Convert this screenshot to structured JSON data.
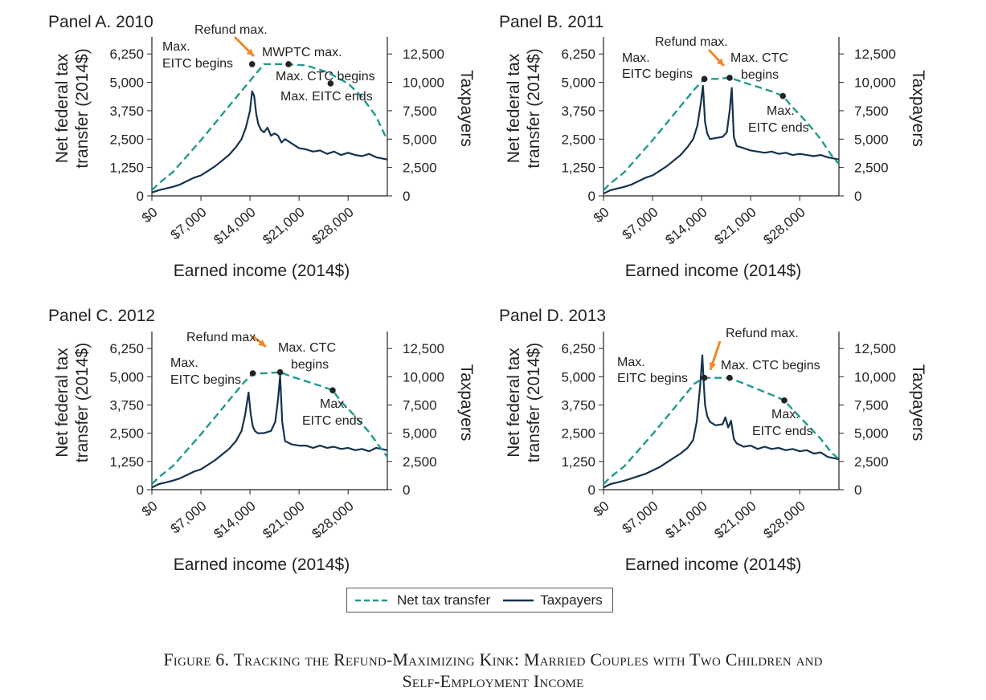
{
  "figure": {
    "caption_line1": "Figure 6. Tracking the Refund-Maximizing Kink: Married Couples with Two Children and",
    "caption_line2": "Self-Employment Income"
  },
  "legend": {
    "net_transfer_label": "Net tax transfer",
    "taxpayers_label": "Taxpayers"
  },
  "colors": {
    "net_transfer": "#1f9a8e",
    "taxpayers": "#15324e",
    "arrow": "#f0872a"
  },
  "chart_data": [
    {
      "type": "line",
      "title": "Panel A. 2010",
      "xlabel": "Earned income (2014$)",
      "ylabel_left": "Net federal tax transfer (2014$)",
      "ylabel_right": "Taxpayers",
      "x_ticks": [
        "$0",
        "$7,000",
        "$14,000",
        "$21,000",
        "$28,000"
      ],
      "x_tick_values": [
        0,
        7000,
        14000,
        21000,
        28000
      ],
      "y_left_ticks": [
        "0",
        "1,250",
        "2,500",
        "3,750",
        "5,000",
        "6,250"
      ],
      "y_right_ticks": [
        "0",
        "2,500",
        "5,000",
        "7,500",
        "10,000",
        "12,500"
      ],
      "xlim": [
        0,
        33600
      ],
      "ylim_left": [
        0,
        7000
      ],
      "ylim_right": [
        0,
        14000
      ],
      "net_transfer": {
        "x": [
          0,
          1000,
          3000,
          5000,
          7000,
          9000,
          11000,
          13000,
          14500,
          16000,
          19000,
          22000,
          25000,
          28000,
          30000,
          32000,
          33600
        ],
        "y": [
          250,
          550,
          1050,
          1750,
          2450,
          3200,
          3950,
          4700,
          5250,
          5800,
          5800,
          5750,
          5450,
          4950,
          4350,
          3500,
          2450
        ]
      },
      "taxpayers": {
        "x": [
          0,
          1000,
          2000,
          3000,
          4000,
          5000,
          6000,
          7000,
          8000,
          9000,
          10000,
          11000,
          12000,
          12800,
          13400,
          14000,
          14300,
          14600,
          14900,
          15200,
          15600,
          16000,
          16500,
          17000,
          17500,
          18000,
          18500,
          19000,
          20000,
          21000,
          22000,
          23000,
          24000,
          25000,
          26000,
          27000,
          28000,
          29000,
          30000,
          31000,
          32000,
          33600
        ],
        "y": [
          300,
          500,
          650,
          800,
          1000,
          1300,
          1600,
          1800,
          2200,
          2600,
          3100,
          3600,
          4300,
          5000,
          6000,
          7500,
          9200,
          8800,
          7200,
          6300,
          5800,
          5600,
          6000,
          5300,
          5500,
          5300,
          4700,
          5000,
          4600,
          4200,
          4100,
          3900,
          4000,
          3700,
          3900,
          3600,
          3800,
          3600,
          3500,
          3700,
          3400,
          3200
        ]
      },
      "annotations": [
        {
          "label": "Refund max.",
          "x": 14600,
          "y": 5800,
          "arrow": true
        },
        {
          "label": "Max.",
          "x": 14300,
          "y": 5800
        },
        {
          "label": "EITC begins",
          "x": 14300,
          "y": 5800
        },
        {
          "label": "MWPTC max.",
          "x": 19500,
          "y": 5800
        },
        {
          "label": "Max. CTC begins",
          "x": 25500,
          "y": 4950
        },
        {
          "label": "Max. EITC ends",
          "x": 25500,
          "y": 4950
        }
      ]
    },
    {
      "type": "line",
      "title": "Panel B. 2011",
      "xlabel": "Earned income (2014$)",
      "ylabel_left": "Net federal tax transfer (2014$)",
      "ylabel_right": "Taxpayers",
      "x_ticks": [
        "$0",
        "$7,000",
        "$14,000",
        "$21,000",
        "$28,000"
      ],
      "x_tick_values": [
        0,
        7000,
        14000,
        21000,
        28000
      ],
      "y_left_ticks": [
        "0",
        "1,250",
        "2,500",
        "3,750",
        "5,000",
        "6,250"
      ],
      "y_right_ticks": [
        "0",
        "2,500",
        "5,000",
        "7,500",
        "10,000",
        "12,500"
      ],
      "xlim": [
        0,
        33600
      ],
      "ylim_left": [
        0,
        7000
      ],
      "ylim_right": [
        0,
        14000
      ],
      "net_transfer": {
        "x": [
          0,
          1000,
          3000,
          5000,
          7000,
          9000,
          11000,
          13000,
          14400,
          16000,
          18000,
          20000,
          22000,
          24000,
          25600,
          27000,
          29000,
          31000,
          32500,
          33600
        ],
        "y": [
          250,
          550,
          1050,
          1750,
          2450,
          3200,
          3950,
          4700,
          5150,
          5150,
          5200,
          5000,
          4800,
          4600,
          4400,
          3900,
          3250,
          2500,
          1800,
          1400
        ]
      },
      "taxpayers": {
        "x": [
          0,
          1000,
          2000,
          3000,
          4000,
          5000,
          6000,
          7000,
          8000,
          9000,
          10000,
          11000,
          12000,
          12800,
          13400,
          13900,
          14200,
          14500,
          14800,
          15200,
          16000,
          17000,
          17600,
          18000,
          18300,
          18600,
          19000,
          20000,
          21000,
          22000,
          23000,
          24000,
          25000,
          26000,
          27000,
          28000,
          29000,
          30000,
          31000,
          32000,
          33600
        ],
        "y": [
          200,
          500,
          650,
          800,
          1000,
          1300,
          1600,
          1800,
          2200,
          2600,
          3100,
          3600,
          4300,
          5000,
          6200,
          8200,
          9700,
          6500,
          5500,
          5000,
          5100,
          5200,
          5600,
          7500,
          9500,
          5200,
          4400,
          4200,
          4000,
          3900,
          3800,
          3900,
          3700,
          3800,
          3600,
          3700,
          3600,
          3500,
          3600,
          3400,
          3200
        ]
      },
      "annotations": [
        {
          "label": "Refund max.",
          "x": 16000,
          "y": 5150,
          "arrow": true
        },
        {
          "label": "Max.",
          "x": 14400,
          "y": 5150
        },
        {
          "label": "EITC begins",
          "x": 14400,
          "y": 5150
        },
        {
          "label": "Max. CTC",
          "x": 18000,
          "y": 5200
        },
        {
          "label": "begins",
          "x": 18000,
          "y": 5200
        },
        {
          "label": "Max.",
          "x": 25600,
          "y": 4400
        },
        {
          "label": "EITC ends",
          "x": 25600,
          "y": 4400
        }
      ]
    },
    {
      "type": "line",
      "title": "Panel C. 2012",
      "xlabel": "Earned income (2014$)",
      "ylabel_left": "Net federal tax transfer (2014$)",
      "ylabel_right": "Taxpayers",
      "x_ticks": [
        "$0",
        "$7,000",
        "$14,000",
        "$21,000",
        "$28,000"
      ],
      "x_tick_values": [
        0,
        7000,
        14000,
        21000,
        28000
      ],
      "y_left_ticks": [
        "0",
        "1,250",
        "2,500",
        "3,750",
        "5,000",
        "6,250"
      ],
      "y_right_ticks": [
        "0",
        "2,500",
        "5,000",
        "7,500",
        "10,000",
        "12,500"
      ],
      "xlim": [
        0,
        33600
      ],
      "ylim_left": [
        0,
        7000
      ],
      "ylim_right": [
        0,
        14000
      ],
      "net_transfer": {
        "x": [
          0,
          1000,
          3000,
          5000,
          7000,
          9000,
          11000,
          13000,
          14400,
          16000,
          18300,
          20000,
          22000,
          24000,
          25800,
          27000,
          29000,
          31000,
          32500,
          33600
        ],
        "y": [
          250,
          550,
          1050,
          1750,
          2450,
          3200,
          3950,
          4700,
          5150,
          5150,
          5200,
          5000,
          4800,
          4600,
          4400,
          3900,
          3250,
          2550,
          1900,
          1450
        ]
      },
      "taxpayers": {
        "x": [
          0,
          1000,
          2000,
          3000,
          4000,
          5000,
          6000,
          7000,
          8000,
          9000,
          10000,
          11000,
          12000,
          12800,
          13300,
          13800,
          14100,
          14400,
          14700,
          15100,
          16000,
          17000,
          17600,
          18000,
          18300,
          18600,
          19000,
          20000,
          21000,
          22000,
          23000,
          24000,
          25000,
          26000,
          27000,
          28000,
          29000,
          30000,
          31000,
          32000,
          33600
        ],
        "y": [
          200,
          500,
          650,
          800,
          1000,
          1300,
          1600,
          1800,
          2200,
          2600,
          3100,
          3600,
          4300,
          5200,
          6600,
          8600,
          6700,
          5600,
          5200,
          5000,
          5000,
          5200,
          6000,
          8000,
          10100,
          6000,
          4300,
          4000,
          3900,
          3900,
          3700,
          3900,
          3700,
          3800,
          3600,
          3700,
          3500,
          3600,
          3400,
          3700,
          3500
        ]
      },
      "annotations": [
        {
          "label": "Refund max.",
          "x": 18300,
          "y": 5200,
          "arrow": true
        },
        {
          "label": "Max.",
          "x": 14400,
          "y": 5150
        },
        {
          "label": "EITC begins",
          "x": 14400,
          "y": 5150
        },
        {
          "label": "Max. CTC",
          "x": 18300,
          "y": 5200
        },
        {
          "label": "begins",
          "x": 18300,
          "y": 5200
        },
        {
          "label": "Max.",
          "x": 25800,
          "y": 4400
        },
        {
          "label": "EITC ends",
          "x": 25800,
          "y": 4400
        }
      ]
    },
    {
      "type": "line",
      "title": "Panel D. 2013",
      "xlabel": "Earned income (2014$)",
      "ylabel_left": "Net federal tax transfer (2014$)",
      "ylabel_right": "Taxpayers",
      "x_ticks": [
        "$0",
        "$7,000",
        "$14,000",
        "$21,000",
        "$28,000"
      ],
      "x_tick_values": [
        0,
        7000,
        14000,
        21000,
        28000
      ],
      "y_left_ticks": [
        "0",
        "1,250",
        "2,500",
        "3,750",
        "5,000",
        "6,250"
      ],
      "y_right_ticks": [
        "0",
        "2,500",
        "5,000",
        "7,500",
        "10,000",
        "12,500"
      ],
      "xlim": [
        0,
        33600
      ],
      "ylim_left": [
        0,
        7000
      ],
      "ylim_right": [
        0,
        14000
      ],
      "net_transfer": {
        "x": [
          0,
          1000,
          3000,
          5000,
          7000,
          9000,
          11000,
          13000,
          14400,
          16000,
          18000,
          20000,
          22000,
          24000,
          25800,
          27000,
          29000,
          31000,
          32500,
          33600
        ],
        "y": [
          250,
          550,
          1050,
          1750,
          2450,
          3200,
          3950,
          4700,
          4950,
          4950,
          4950,
          4700,
          4450,
          4200,
          3950,
          3550,
          2900,
          2250,
          1650,
          1350
        ]
      },
      "taxpayers": {
        "x": [
          0,
          1000,
          2000,
          3000,
          4000,
          5000,
          6000,
          7000,
          8000,
          9000,
          10000,
          11000,
          12000,
          12800,
          13300,
          13800,
          14100,
          14300,
          14500,
          14800,
          15200,
          16000,
          17000,
          17400,
          17800,
          18200,
          18600,
          19000,
          20000,
          21000,
          22000,
          23000,
          24000,
          25000,
          26000,
          27000,
          28000,
          29000,
          30000,
          31000,
          32000,
          33600
        ],
        "y": [
          200,
          500,
          650,
          800,
          1000,
          1200,
          1400,
          1700,
          2000,
          2400,
          2800,
          3200,
          3700,
          4400,
          6000,
          9200,
          11900,
          9500,
          7500,
          6500,
          6000,
          5700,
          5800,
          6400,
          5500,
          6100,
          4500,
          4100,
          3800,
          3900,
          3600,
          3800,
          3600,
          3700,
          3500,
          3600,
          3400,
          3500,
          3200,
          3300,
          2900,
          2700
        ]
      },
      "annotations": [
        {
          "label": "Refund max.",
          "x": 14400,
          "y": 4950,
          "arrow": true
        },
        {
          "label": "Max.",
          "x": 14400,
          "y": 4950
        },
        {
          "label": "EITC begins",
          "x": 14400,
          "y": 4950
        },
        {
          "label": "Max. CTC begins",
          "x": 18000,
          "y": 4950
        },
        {
          "label": "Max.",
          "x": 25800,
          "y": 3950
        },
        {
          "label": "EITC ends",
          "x": 25800,
          "y": 3950
        }
      ]
    }
  ]
}
